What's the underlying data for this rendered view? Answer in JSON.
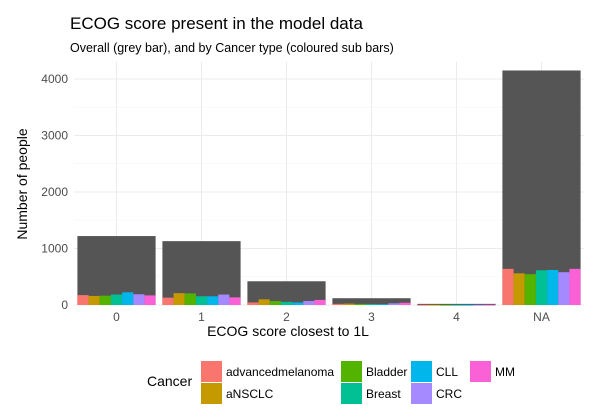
{
  "chart_data": {
    "type": "bar",
    "title": "ECOG score present in the model data",
    "subtitle": "Overall (grey bar), and by Cancer type (coloured sub bars)",
    "xlabel": "ECOG score closest to 1L",
    "ylabel": "Number of people",
    "categories": [
      "0",
      "1",
      "2",
      "3",
      "4",
      "NA"
    ],
    "ylim": [
      0,
      4300
    ],
    "yticks": [
      0,
      1000,
      2000,
      3000,
      4000
    ],
    "yticklabels": [
      "0",
      "1000",
      "2000",
      "3000",
      "4000"
    ],
    "overall": {
      "color": "#555555",
      "values": [
        1220,
        1130,
        420,
        120,
        20,
        4150
      ]
    },
    "legend": {
      "title": "Cancer",
      "position": "bottom"
    },
    "series": [
      {
        "name": "advancedmelanoma",
        "color": "#F8766D",
        "values": [
          175,
          130,
          45,
          20,
          3,
          640
        ]
      },
      {
        "name": "aNSCLC",
        "color": "#C49A00",
        "values": [
          160,
          210,
          100,
          25,
          4,
          560
        ]
      },
      {
        "name": "Bladder",
        "color": "#53B400",
        "values": [
          165,
          205,
          70,
          20,
          3,
          545
        ]
      },
      {
        "name": "Breast",
        "color": "#00C094",
        "values": [
          185,
          155,
          55,
          18,
          3,
          615
        ]
      },
      {
        "name": "CLL",
        "color": "#00B6EB",
        "values": [
          225,
          155,
          45,
          15,
          3,
          620
        ]
      },
      {
        "name": "CRC",
        "color": "#A58AFF",
        "values": [
          190,
          185,
          70,
          30,
          3,
          580
        ]
      },
      {
        "name": "MM",
        "color": "#FB61D7",
        "values": [
          170,
          135,
          90,
          40,
          4,
          640
        ]
      }
    ],
    "grid": true
  }
}
